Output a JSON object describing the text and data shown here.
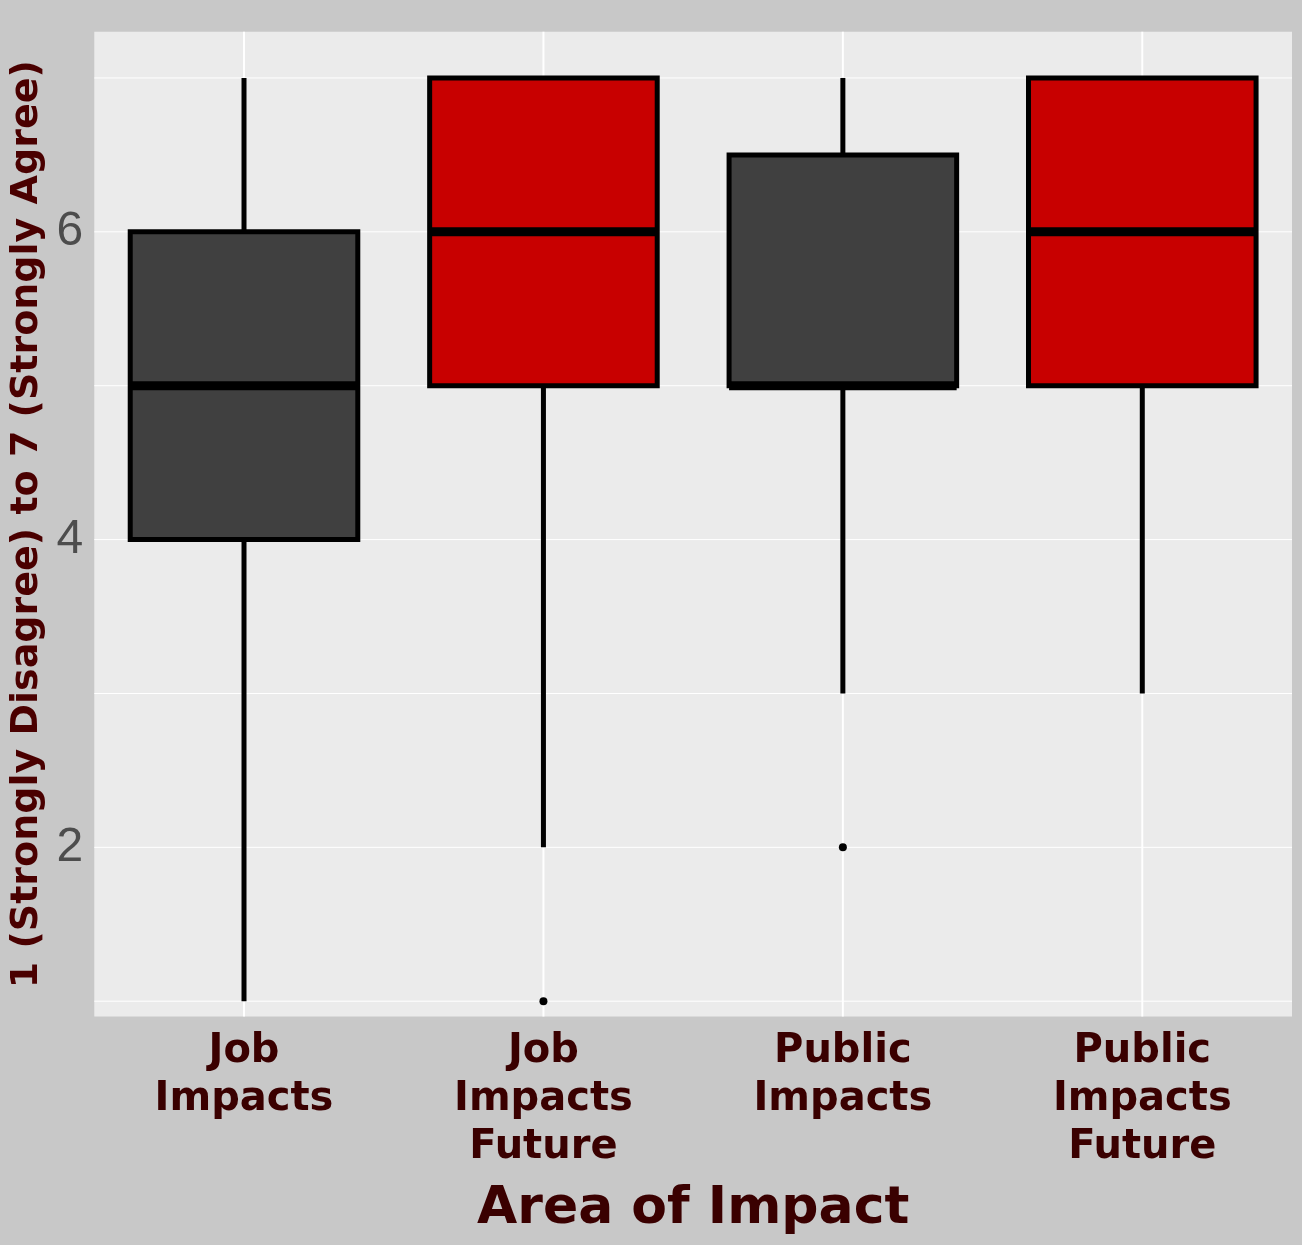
{
  "chart_data": {
    "type": "box",
    "xlabel": "Area of Impact",
    "ylabel": "1 (Strongly Disagree) to 7 (Strongly Agree)",
    "categories": [
      "Job Impacts",
      "Job Impacts Future",
      "Public Impacts",
      "Public Impacts Future"
    ],
    "colors": [
      "#404040",
      "#c80000",
      "#404040",
      "#c80000"
    ],
    "boxes": [
      {
        "low": 1,
        "q1": 4,
        "median": 5,
        "q3": 6,
        "high": 7
      },
      {
        "low": 2,
        "q1": 5,
        "median": 6,
        "q3": 7,
        "high": 7,
        "outliers": [
          1
        ]
      },
      {
        "low": 3,
        "q1": 5,
        "median": 5,
        "q3": 6.5,
        "high": 7,
        "outliers": [
          2
        ]
      },
      {
        "low": 3,
        "q1": 5,
        "median": 6,
        "q3": 7,
        "high": 7
      }
    ],
    "ylim": [
      0.9,
      7.3
    ],
    "yticks": [
      2,
      4,
      6
    ],
    "grid": true,
    "legend": false
  }
}
